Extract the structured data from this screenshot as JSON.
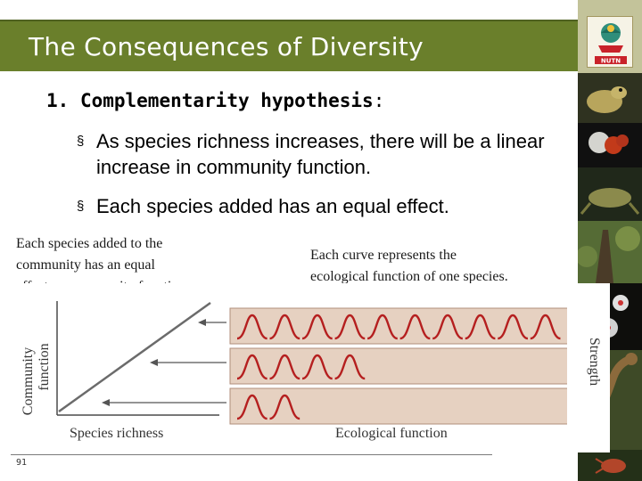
{
  "slide": {
    "title": "The Consequences of Diversity",
    "heading_number": "1.",
    "heading_main": "Complementarity hypothesis",
    "heading_colon": ":",
    "bullet_symbol": "§",
    "bullets": [
      "As species richness increases, there will be a linear increase in community function.",
      "Each species added has an equal effect."
    ],
    "page_number": "91",
    "logo_text": "NUTN"
  },
  "figure": {
    "caption_left": [
      "Each species added to the",
      "community has an equal",
      "effect on community function."
    ],
    "caption_right": [
      "Each curve represents the",
      "ecological function of one species."
    ],
    "left_graph": {
      "xlabel": "Species richness",
      "ylabel_line1": "Community",
      "ylabel_line2": "function"
    },
    "right_graph": {
      "xlabel": "Ecological function",
      "ylabel": "Strength"
    },
    "rows": [
      {
        "curves": 10
      },
      {
        "curves": 4
      },
      {
        "curves": 2
      }
    ]
  },
  "colors": {
    "title_bar": "#6a7f2b",
    "row_fill": "#e6d1c1",
    "row_border": "#b08e7a",
    "curve": "#b51f1f",
    "panel_fill": "#f3e9e1"
  }
}
